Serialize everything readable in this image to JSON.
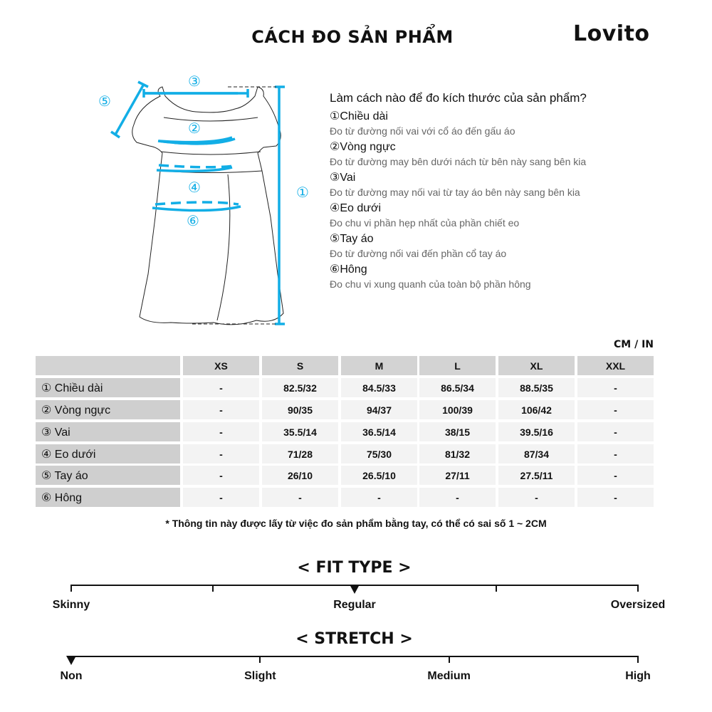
{
  "header": {
    "title": "CÁCH ĐO SẢN PHẨM",
    "brand": "Lovito"
  },
  "accent_color": "#12aee6",
  "diagram": {
    "labels": [
      "①",
      "②",
      "③",
      "④",
      "⑤",
      "⑥"
    ]
  },
  "howto": {
    "question": "Làm cách nào để đo kích thước của sản phẩm?",
    "items": [
      {
        "title": "①Chiều dài",
        "desc": "Đo từ đường nối vai với cổ áo đến gấu áo"
      },
      {
        "title": "②Vòng ngực",
        "desc": "Đo từ đường may bên dưới nách từ bên này sang bên kia"
      },
      {
        "title": "③Vai",
        "desc": "Đo từ đường may nối vai từ tay áo bên này sang bên kia"
      },
      {
        "title": "④Eo dưới",
        "desc": "Đo chu vi phần hẹp nhất của phần chiết eo"
      },
      {
        "title": "⑤Tay áo",
        "desc": "Đo từ đường nối vai đến phần cổ tay áo"
      },
      {
        "title": "⑥Hông",
        "desc": "Đo chu vi xung quanh của toàn bộ phần hông"
      }
    ]
  },
  "size_table": {
    "unit": "CM / IN",
    "columns": [
      "XS",
      "S",
      "M",
      "L",
      "XL",
      "XXL"
    ],
    "rows": [
      {
        "label": "① Chiều dài",
        "values": [
          "-",
          "82.5/32",
          "84.5/33",
          "86.5/34",
          "88.5/35",
          "-"
        ]
      },
      {
        "label": "② Vòng ngực",
        "values": [
          "-",
          "90/35",
          "94/37",
          "100/39",
          "106/42",
          "-"
        ]
      },
      {
        "label": "③ Vai",
        "values": [
          "-",
          "35.5/14",
          "36.5/14",
          "38/15",
          "39.5/16",
          "-"
        ]
      },
      {
        "label": "④ Eo dưới",
        "values": [
          "-",
          "71/28",
          "75/30",
          "81/32",
          "87/34",
          "-"
        ]
      },
      {
        "label": "⑤ Tay áo",
        "values": [
          "-",
          "26/10",
          "26.5/10",
          "27/11",
          "27.5/11",
          "-"
        ]
      },
      {
        "label": "⑥ Hông",
        "values": [
          "-",
          "-",
          "-",
          "-",
          "-",
          "-"
        ]
      }
    ],
    "note": "* Thông tin này được lấy từ việc đo sản phẩm bằng tay, có thể có sai số 1 ~ 2CM"
  },
  "fit_type": {
    "title": "< FIT TYPE >",
    "levels": [
      "Skinny",
      "Regular",
      "Oversized"
    ],
    "selected": "Regular",
    "selected_fraction": 0.5
  },
  "stretch": {
    "title": "< STRETCH >",
    "levels": [
      "Non",
      "Slight",
      "Medium",
      "High"
    ],
    "selected": "Non",
    "selected_fraction": 0
  }
}
